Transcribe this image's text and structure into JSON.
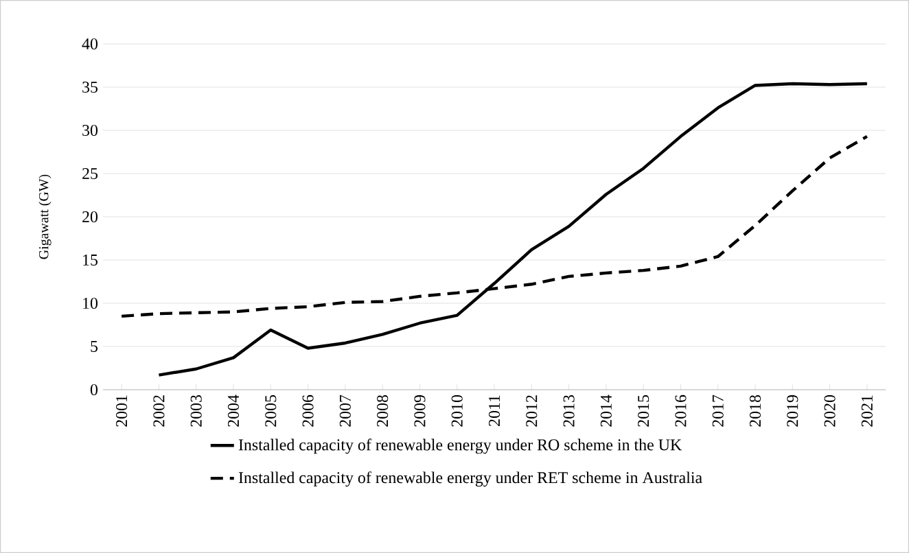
{
  "chart_data": {
    "type": "line",
    "ylabel": "Gigawatt (GW)",
    "categories": [
      "2001",
      "2002",
      "2003",
      "2004",
      "2005",
      "2006",
      "2007",
      "2008",
      "2009",
      "2010",
      "2011",
      "2012",
      "2013",
      "2014",
      "2015",
      "2016",
      "2017",
      "2018",
      "2019",
      "2020",
      "2021"
    ],
    "series": [
      {
        "name": "Installed capacity of renewable energy under RO scheme in the UK",
        "color": "#000000",
        "line_style": "solid",
        "values": [
          null,
          1.7,
          2.4,
          3.7,
          6.9,
          4.8,
          5.4,
          6.4,
          7.7,
          8.6,
          12.3,
          16.2,
          18.9,
          22.6,
          25.6,
          29.3,
          32.6,
          35.2,
          35.4,
          35.3,
          35.4
        ]
      },
      {
        "name": "Installed capacity of renewable energy under RET scheme in Australia",
        "color": "#000000",
        "line_style": "dashed",
        "values": [
          8.5,
          8.8,
          8.9,
          9.0,
          9.4,
          9.6,
          10.1,
          10.2,
          10.8,
          11.2,
          11.7,
          12.2,
          13.1,
          13.5,
          13.8,
          14.3,
          15.4,
          19.0,
          23.0,
          26.8,
          29.3
        ]
      }
    ],
    "ylim": [
      0,
      40
    ],
    "yticks": [
      0,
      5,
      10,
      15,
      20,
      25,
      30,
      35,
      40
    ],
    "grid": "y",
    "legend": "bottom",
    "marker": "none"
  }
}
